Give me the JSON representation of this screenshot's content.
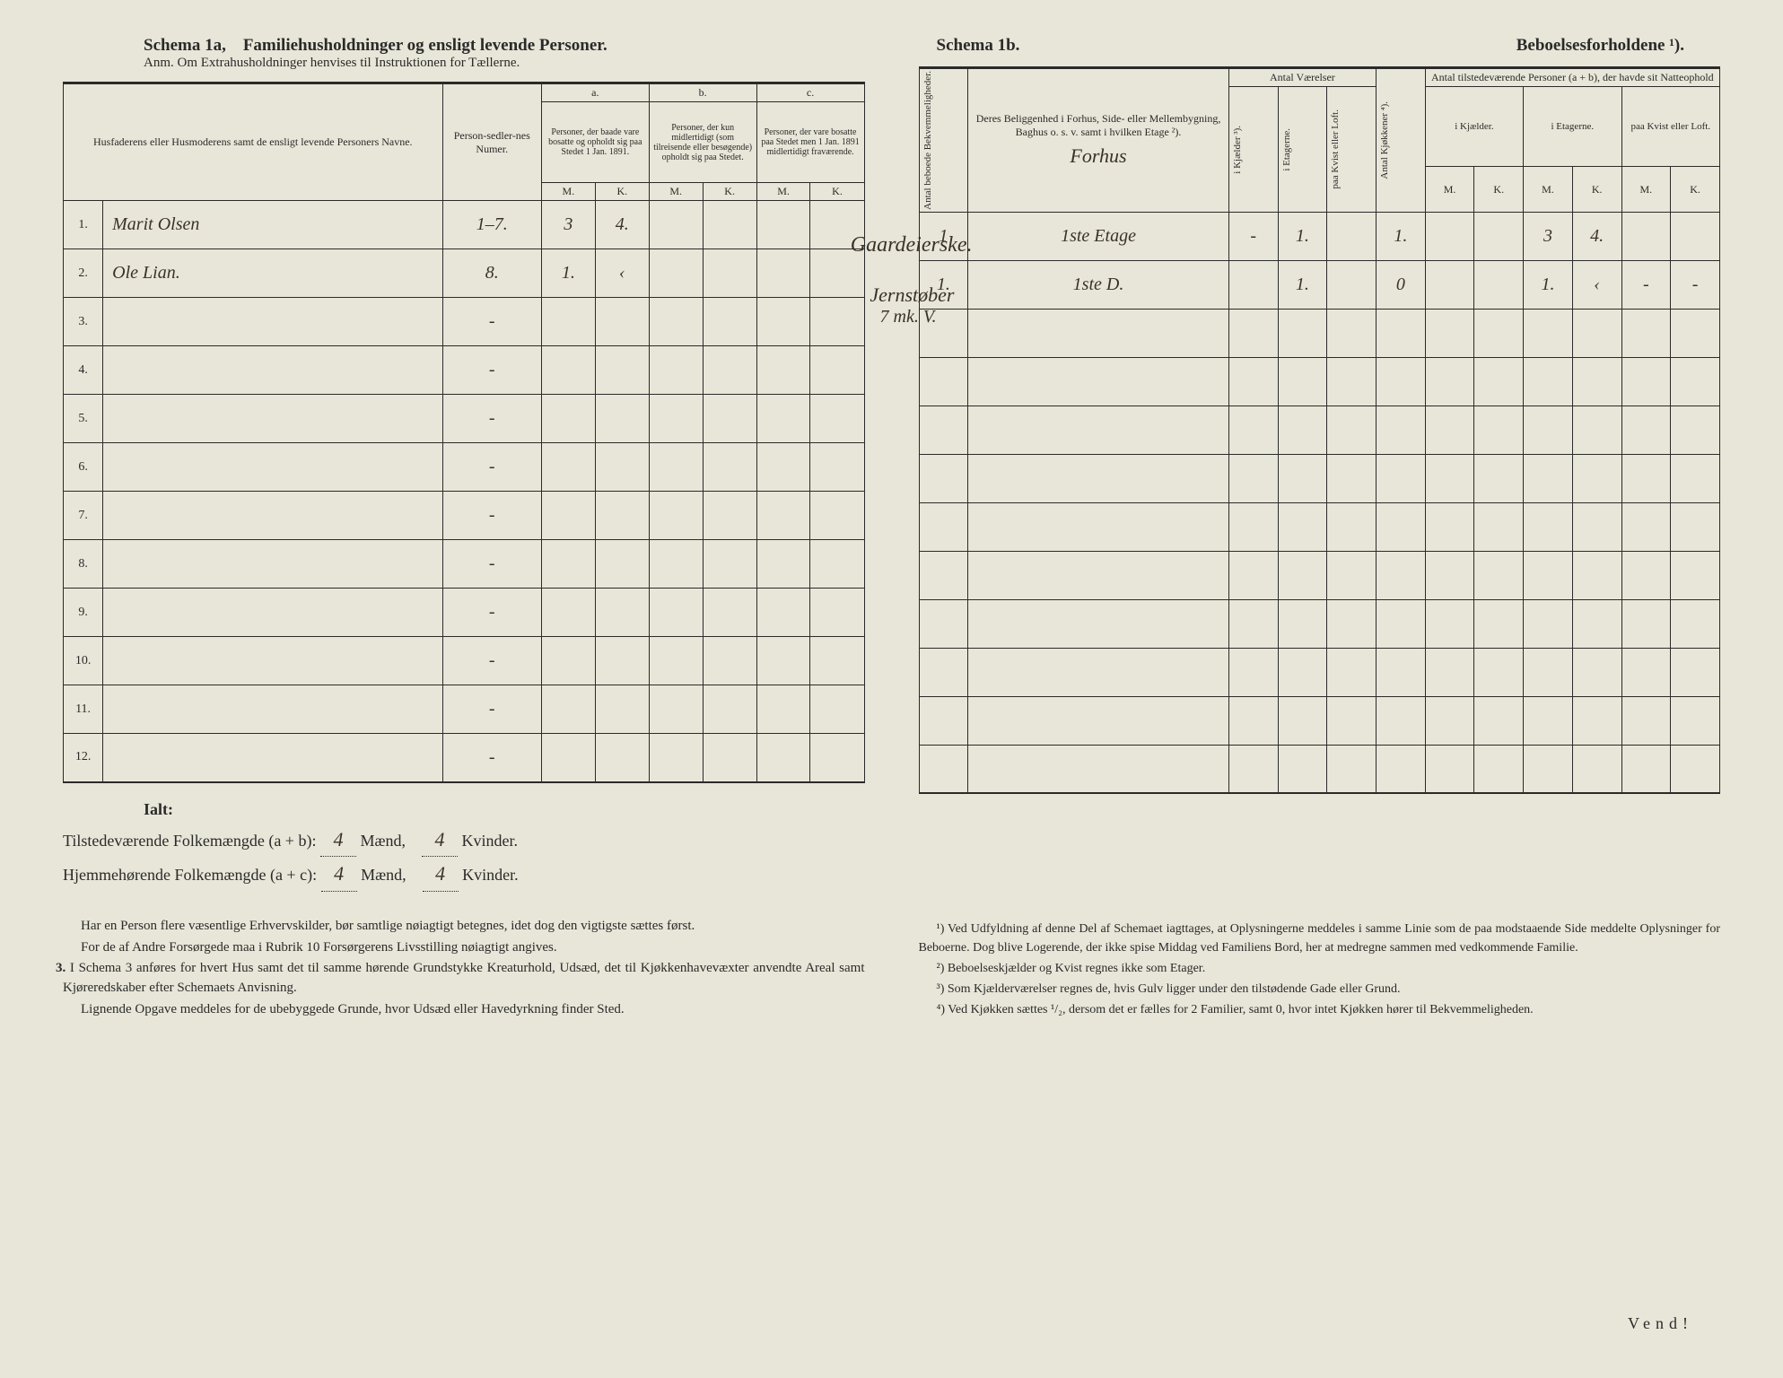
{
  "left": {
    "schema_title": "Schema 1a,",
    "schema_subtitle": "Familiehusholdninger og ensligt levende Personer.",
    "anm": "Anm. Om Extrahusholdninger henvises til Instruktionen for Tællerne.",
    "header": {
      "names": "Husfaderens eller Husmoderens samt de ensligt levende Personers Navne.",
      "person_num": "Person-sedler-nes Numer.",
      "a_label": "a.",
      "a_text": "Personer, der baade vare bosatte og opholdt sig paa Stedet 1 Jan. 1891.",
      "b_label": "b.",
      "b_text": "Personer, der kun midlertidigt (som tilreisende eller besøgende) opholdt sig paa Stedet.",
      "c_label": "c.",
      "c_text": "Personer, der vare bosatte paa Stedet men 1 Jan. 1891 midlertidigt fraværende.",
      "M": "M.",
      "K": "K."
    },
    "rows": [
      {
        "n": "1.",
        "name": "Marit Olsen",
        "pers": "1–7.",
        "aM": "3",
        "aK": "4.",
        "bM": "",
        "bK": "",
        "cM": "",
        "cK": ""
      },
      {
        "n": "2.",
        "name": "Ole Lian.",
        "pers": "8.",
        "aM": "1.",
        "aK": "‹",
        "bM": "",
        "bK": "",
        "cM": "",
        "cK": ""
      },
      {
        "n": "3.",
        "name": "",
        "pers": "-",
        "aM": "",
        "aK": "",
        "bM": "",
        "bK": "",
        "cM": "",
        "cK": ""
      },
      {
        "n": "4.",
        "name": "",
        "pers": "-",
        "aM": "",
        "aK": "",
        "bM": "",
        "bK": "",
        "cM": "",
        "cK": ""
      },
      {
        "n": "5.",
        "name": "",
        "pers": "-",
        "aM": "",
        "aK": "",
        "bM": "",
        "bK": "",
        "cM": "",
        "cK": ""
      },
      {
        "n": "6.",
        "name": "",
        "pers": "-",
        "aM": "",
        "aK": "",
        "bM": "",
        "bK": "",
        "cM": "",
        "cK": ""
      },
      {
        "n": "7.",
        "name": "",
        "pers": "-",
        "aM": "",
        "aK": "",
        "bM": "",
        "bK": "",
        "cM": "",
        "cK": ""
      },
      {
        "n": "8.",
        "name": "",
        "pers": "-",
        "aM": "",
        "aK": "",
        "bM": "",
        "bK": "",
        "cM": "",
        "cK": ""
      },
      {
        "n": "9.",
        "name": "",
        "pers": "-",
        "aM": "",
        "aK": "",
        "bM": "",
        "bK": "",
        "cM": "",
        "cK": ""
      },
      {
        "n": "10.",
        "name": "",
        "pers": "-",
        "aM": "",
        "aK": "",
        "bM": "",
        "bK": "",
        "cM": "",
        "cK": ""
      },
      {
        "n": "11.",
        "name": "",
        "pers": "-",
        "aM": "",
        "aK": "",
        "bM": "",
        "bK": "",
        "cM": "",
        "cK": ""
      },
      {
        "n": "12.",
        "name": "",
        "pers": "-",
        "aM": "",
        "aK": "",
        "bM": "",
        "bK": "",
        "cM": "",
        "cK": ""
      }
    ],
    "marginal1": "Gaardeierske.",
    "marginal2a": "Jernstøber",
    "marginal2b": "7 mk. V.",
    "totals": {
      "ialt": "Ialt:",
      "line1_label": "Tilstedeværende Folkemængde (a + b): ",
      "line1_m": "4",
      "maend": "Mænd,",
      "line1_k": "4",
      "kvinder": "Kvinder.",
      "line2_label": "Hjemmehørende Folkemængde (a + c): ",
      "line2_m": "4",
      "line2_k": "4"
    },
    "notes": {
      "p1": "Har en Person flere væsentlige Erhvervskilder, bør samtlige nøiagtigt betegnes, idet dog den vigtigste sættes først.",
      "p2": "For de af Andre Forsørgede maa i Rubrik 10 Forsørgerens Livsstilling nøiagtigt angives.",
      "p3_num": "3.",
      "p3": "I Schema 3 anføres for hvert Hus samt det til samme hørende Grundstykke Kreaturhold, Udsæd, det til Kjøkkenhavevæxter anvendte Areal samt Kjøreredskaber efter Schemaets Anvisning.",
      "p4": "Lignende Opgave meddeles for de ubebyggede Grunde, hvor Udsæd eller Havedyrkning finder Sted."
    }
  },
  "right": {
    "schema_title": "Schema 1b.",
    "schema_subtitle": "Beboelsesforholdene ¹).",
    "header": {
      "col1": "Antal beboede Bekvemmeligheder.",
      "col2": "Deres Beliggenhed i Forhus, Side- eller Mellembygning, Baghus o. s. v. samt i hvilken Etage ²).",
      "grp_rooms": "Antal Værelser",
      "col3": "i Kjælder ³).",
      "col4": "i Etagerne.",
      "col5": "paa Kvist eller Loft.",
      "col6": "Antal Kjøkkener ⁴).",
      "grp_persons": "Antal tilstedeværende Personer (a + b), der havde sit Natteophold",
      "col7": "i Kjælder.",
      "col8": "i Etagerne.",
      "col9": "paa Kvist eller Loft.",
      "M": "M.",
      "K": "K.",
      "pre": "Forhus"
    },
    "rows": [
      {
        "bek": "1",
        "loc": "1ste Etage",
        "kj": "-",
        "et": "1.",
        "kv": "",
        "kit": "1.",
        "kjM": "",
        "kjK": "",
        "etM": "3",
        "etK": "4.",
        "kvM": "",
        "kvK": ""
      },
      {
        "bek": "1.",
        "loc": "1ste D.",
        "kj": "",
        "et": "1.",
        "kv": "",
        "kit": "0",
        "kjM": "",
        "kjK": "",
        "etM": "1.",
        "etK": "‹",
        "kvM": "-",
        "kvK": "-"
      },
      {
        "bek": "",
        "loc": "",
        "kj": "",
        "et": "",
        "kv": "",
        "kit": "",
        "kjM": "",
        "kjK": "",
        "etM": "",
        "etK": "",
        "kvM": "",
        "kvK": ""
      },
      {
        "bek": "",
        "loc": "",
        "kj": "",
        "et": "",
        "kv": "",
        "kit": "",
        "kjM": "",
        "kjK": "",
        "etM": "",
        "etK": "",
        "kvM": "",
        "kvK": ""
      },
      {
        "bek": "",
        "loc": "",
        "kj": "",
        "et": "",
        "kv": "",
        "kit": "",
        "kjM": "",
        "kjK": "",
        "etM": "",
        "etK": "",
        "kvM": "",
        "kvK": ""
      },
      {
        "bek": "",
        "loc": "",
        "kj": "",
        "et": "",
        "kv": "",
        "kit": "",
        "kjM": "",
        "kjK": "",
        "etM": "",
        "etK": "",
        "kvM": "",
        "kvK": ""
      },
      {
        "bek": "",
        "loc": "",
        "kj": "",
        "et": "",
        "kv": "",
        "kit": "",
        "kjM": "",
        "kjK": "",
        "etM": "",
        "etK": "",
        "kvM": "",
        "kvK": ""
      },
      {
        "bek": "",
        "loc": "",
        "kj": "",
        "et": "",
        "kv": "",
        "kit": "",
        "kjM": "",
        "kjK": "",
        "etM": "",
        "etK": "",
        "kvM": "",
        "kvK": ""
      },
      {
        "bek": "",
        "loc": "",
        "kj": "",
        "et": "",
        "kv": "",
        "kit": "",
        "kjM": "",
        "kjK": "",
        "etM": "",
        "etK": "",
        "kvM": "",
        "kvK": ""
      },
      {
        "bek": "",
        "loc": "",
        "kj": "",
        "et": "",
        "kv": "",
        "kit": "",
        "kjM": "",
        "kjK": "",
        "etM": "",
        "etK": "",
        "kvM": "",
        "kvK": ""
      },
      {
        "bek": "",
        "loc": "",
        "kj": "",
        "et": "",
        "kv": "",
        "kit": "",
        "kjM": "",
        "kjK": "",
        "etM": "",
        "etK": "",
        "kvM": "",
        "kvK": ""
      },
      {
        "bek": "",
        "loc": "",
        "kj": "",
        "et": "",
        "kv": "",
        "kit": "",
        "kjM": "",
        "kjK": "",
        "etM": "",
        "etK": "",
        "kvM": "",
        "kvK": ""
      }
    ],
    "footnotes": {
      "f1": "¹) Ved Udfyldning af denne Del af Schemaet iagttages, at Oplysningerne meddeles i samme Linie som de paa modstaaende Side meddelte Oplysninger for Beboerne. Dog blive Logerende, der ikke spise Middag ved Familiens Bord, her at medregne sammen med vedkommende Familie.",
      "f2": "²) Beboelseskjælder og Kvist regnes ikke som Etager.",
      "f3": "³) Som Kjælderværelser regnes de, hvis Gulv ligger under den tilstødende Gade eller Grund.",
      "f4": "⁴) Ved Kjøkken sættes ¹/₂, dersom det er fælles for 2 Familier, samt 0, hvor intet Kjøkken hører til Bekvemmeligheden."
    },
    "vend": "Vend!"
  },
  "colors": {
    "paper": "#e8e6d8",
    "ink": "#2a2a2a",
    "handwriting": "#3a3228"
  }
}
